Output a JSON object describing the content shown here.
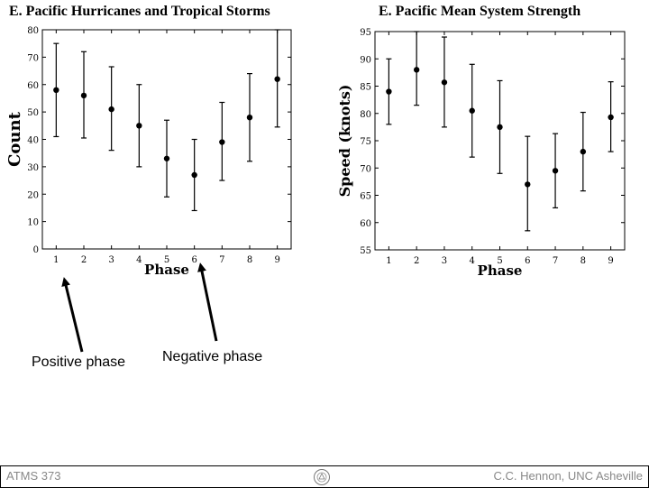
{
  "chart_data": [
    {
      "type": "scatter",
      "title": "E. Pacific Hurricanes and Tropical Storms",
      "xlabel": "Phase",
      "ylabel": "Count",
      "x": [
        1,
        2,
        3,
        4,
        5,
        6,
        7,
        8,
        9
      ],
      "xlim": [
        0.5,
        9.5
      ],
      "ylim": [
        0,
        80
      ],
      "xticks": [
        "1",
        "2",
        "3",
        "4",
        "5",
        "6",
        "7",
        "8",
        "9"
      ],
      "yticks": [
        "0",
        "10",
        "20",
        "30",
        "40",
        "50",
        "60",
        "70",
        "80"
      ],
      "ytick_values": [
        0,
        10,
        20,
        30,
        40,
        50,
        60,
        70,
        80
      ],
      "series": [
        {
          "values": [
            58,
            56,
            51,
            45,
            33,
            27,
            39,
            48,
            62
          ],
          "error_low": [
            41,
            40.5,
            36,
            30,
            19,
            14,
            25,
            32,
            44.5
          ],
          "error_high": [
            75,
            72,
            66.5,
            60,
            47,
            40,
            53.5,
            64,
            80
          ]
        }
      ],
      "grid": false
    },
    {
      "type": "scatter",
      "title": "E. Pacific Mean System Strength",
      "xlabel": "Phase",
      "ylabel": "Speed (knots)",
      "x": [
        1,
        2,
        3,
        4,
        5,
        6,
        7,
        8,
        9
      ],
      "xlim": [
        0.5,
        9.5
      ],
      "ylim": [
        55,
        95
      ],
      "xticks": [
        "1",
        "2",
        "3",
        "4",
        "5",
        "6",
        "7",
        "8",
        "9"
      ],
      "yticks": [
        "55",
        "60",
        "65",
        "70",
        "75",
        "80",
        "85",
        "90",
        "95"
      ],
      "ytick_values": [
        55,
        60,
        65,
        70,
        75,
        80,
        85,
        90,
        95
      ],
      "series": [
        {
          "values": [
            84,
            88,
            85.7,
            80.5,
            77.5,
            67,
            69.5,
            73,
            79.3
          ],
          "error_low": [
            78,
            81.5,
            77.5,
            72,
            69,
            58.5,
            62.7,
            65.8,
            73
          ],
          "error_high": [
            90,
            95,
            94,
            89,
            86,
            75.8,
            76.3,
            80.2,
            85.8
          ]
        }
      ],
      "grid": false
    }
  ],
  "annotations": {
    "positive_phase": "Positive phase",
    "negative_phase": "Negative phase"
  },
  "footer": {
    "left": "ATMS 373",
    "right": "C.C. Hennon, UNC Asheville",
    "logo_icon": "unc-seal-icon"
  }
}
